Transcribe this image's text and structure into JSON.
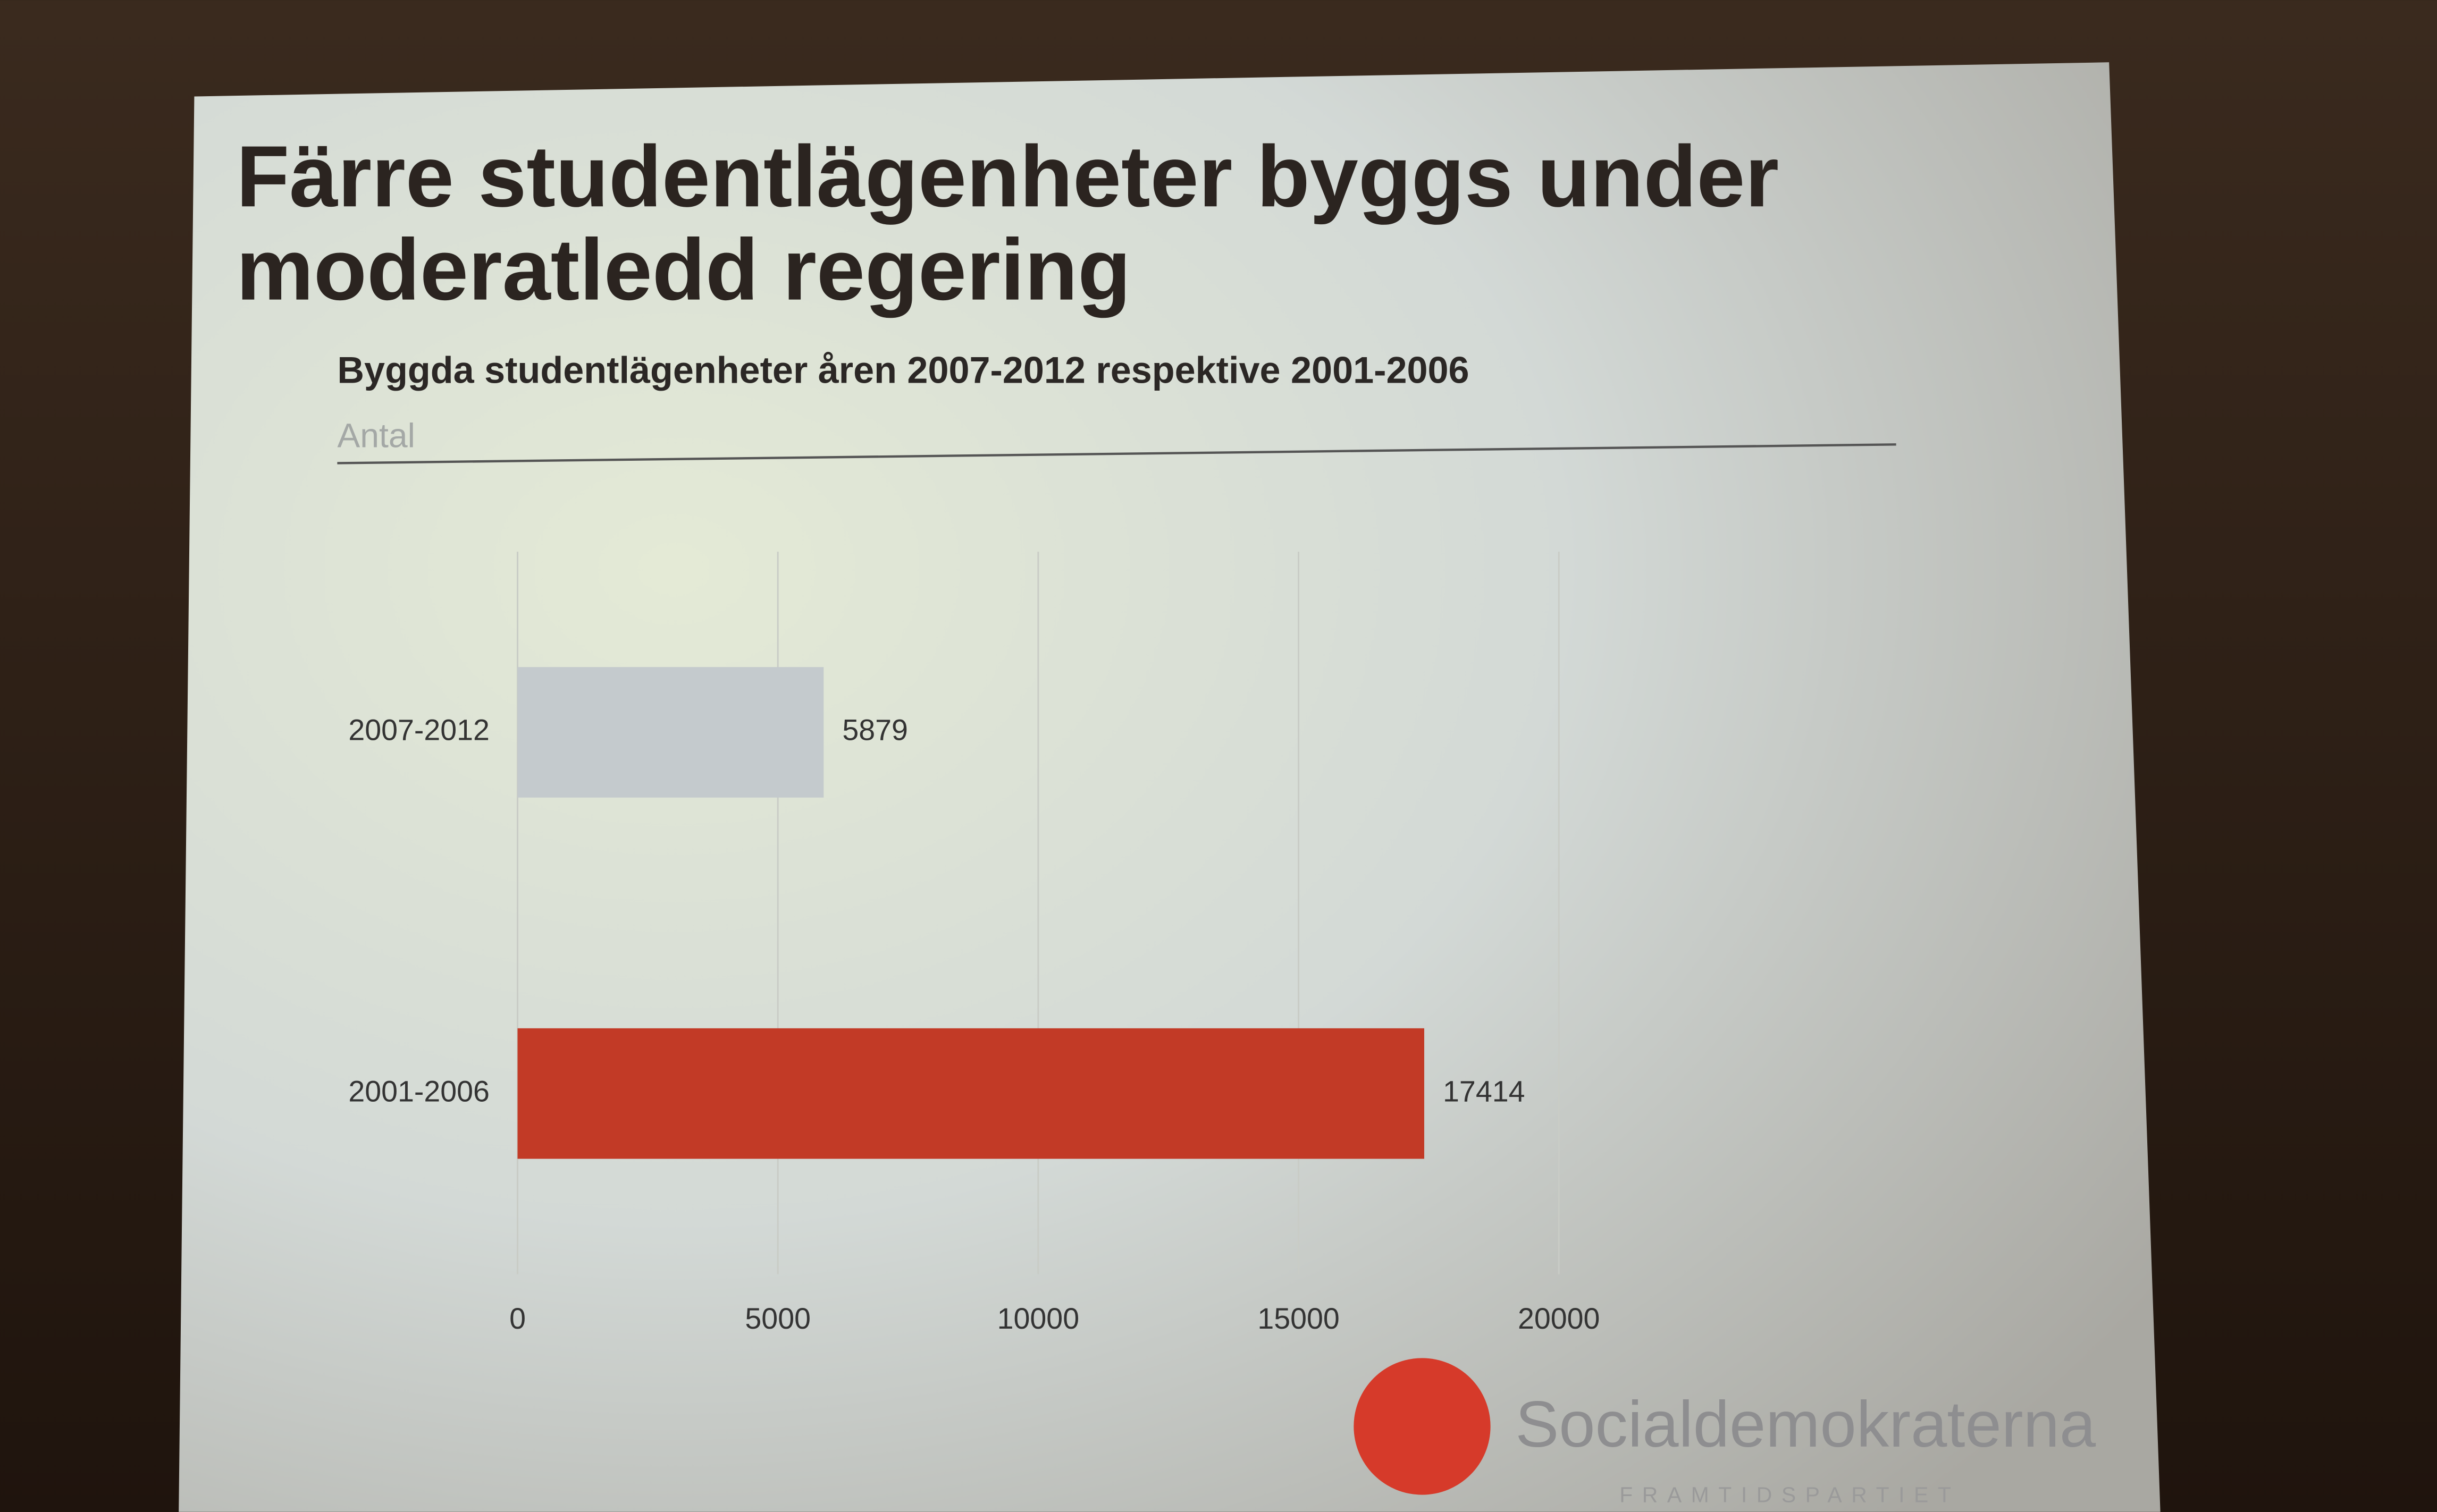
{
  "chart_data": {
    "type": "bar",
    "orientation": "horizontal",
    "title": "Färre studentlägenheter byggs under moderatledd regering",
    "subtitle": "Byggda studentlägenheter åren 2007-2012 respektive 2001-2006",
    "unit_label": "Antal",
    "categories": [
      "2007-2012",
      "2001-2006"
    ],
    "values": [
      5879,
      17414
    ],
    "colors": [
      "#c4cacd",
      "#c23a26"
    ],
    "xlim": [
      0,
      20000
    ],
    "xticks": [
      0,
      5000,
      10000,
      15000,
      20000
    ],
    "grid": true
  },
  "logo": {
    "name": "Socialdemokraterna",
    "tagline": "FRAMTIDSPARTIET"
  }
}
